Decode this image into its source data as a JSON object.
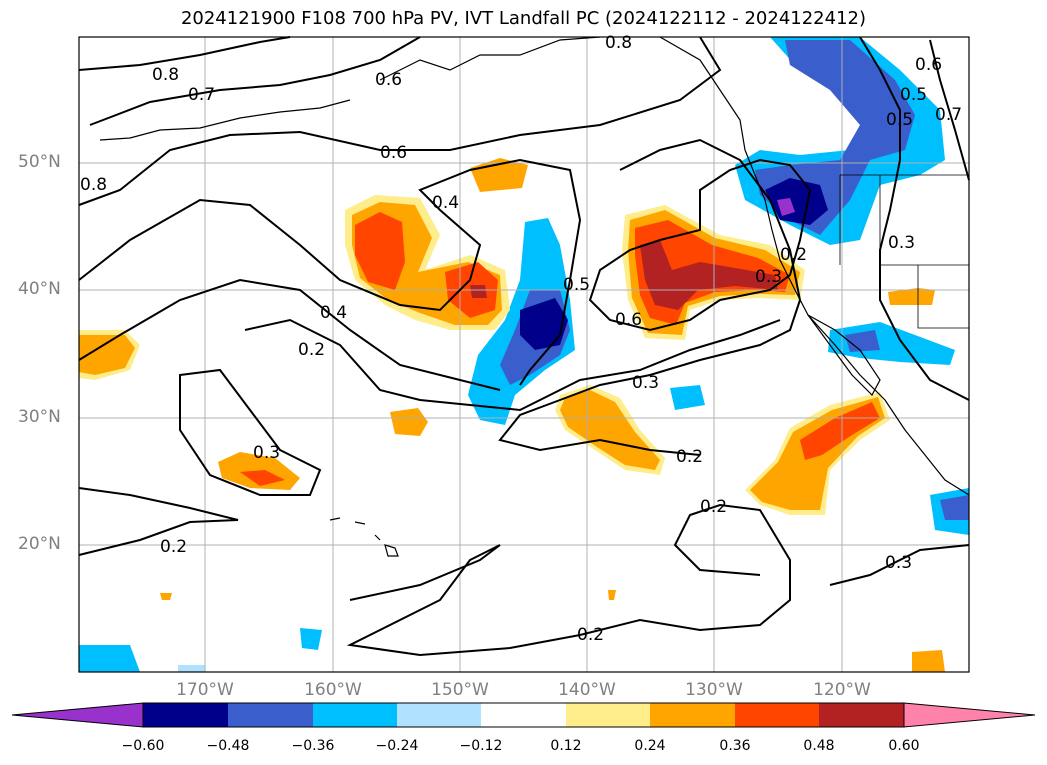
{
  "title": "2024121900 F108 700 hPa PV, IVT Landfall PC (2024122112 - 2024122412)",
  "lat_labels": [
    "50°N",
    "40°N",
    "30°N",
    "20°N"
  ],
  "lon_labels": [
    "170°W",
    "160°W",
    "150°W",
    "140°W",
    "130°W",
    "120°W"
  ],
  "contour_labels": [
    "0.8",
    "0.7",
    "0.8",
    "0.6",
    "0.4",
    "0.4",
    "0.2",
    "0.3",
    "0.2",
    "0.5",
    "0.6",
    "0.3",
    "0.3",
    "0.2",
    "0.2",
    "0.2",
    "0.3",
    "0.6",
    "0.5",
    "0.7",
    "0.5",
    "0.2",
    "0.3",
    "0.6",
    "0.8"
  ],
  "colorbar": {
    "ticks": [
      "−0.60",
      "−0.48",
      "−0.36",
      "−0.24",
      "−0.12",
      "0.12",
      "0.24",
      "0.36",
      "0.48",
      "0.60"
    ],
    "colors": [
      "#9932cc",
      "#00008b",
      "#3a5fcd",
      "#00bfff",
      "#b0e2ff",
      "#ffffff",
      "#ffec8b",
      "#ffa500",
      "#ff4500",
      "#b22222",
      "#ff82ab"
    ]
  }
}
